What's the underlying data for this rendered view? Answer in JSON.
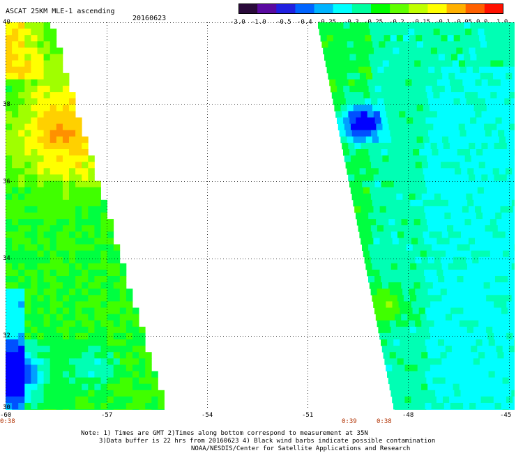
{
  "title": "ASCAT 25KM MLE-1 ascending",
  "date": "20160623",
  "colorbar": {
    "colors": [
      "#2a0a3a",
      "#5a0aa0",
      "#2020e0",
      "#0064ff",
      "#00b4ff",
      "#00ffff",
      "#00ffa0",
      "#00ff00",
      "#60ff00",
      "#c0ff00",
      "#ffff00",
      "#ffb000",
      "#ff6000",
      "#ff1000"
    ],
    "tick_labels": [
      "-3.0",
      "-1.0",
      "-0.5",
      "-0.4",
      "-0.35",
      "-0.3",
      "-0.25",
      "-0.2",
      "-0.15",
      "-0.1",
      "-0.05",
      "0.0",
      "1.0"
    ]
  },
  "map": {
    "lon_range": [
      -60,
      -45
    ],
    "lat_range": [
      30,
      40
    ],
    "lat_labels": [
      "40",
      "38",
      "36",
      "34",
      "32",
      "30"
    ],
    "lon_labels": [
      "-60",
      "-57",
      "-54",
      "-51",
      "-48",
      "-45"
    ],
    "time_labels": [
      "0:38",
      "0:39",
      "0:38"
    ]
  },
  "notes": [
    "Note: 1) Times are GMT 2)Times along bottom correspond to measurement at 35N",
    "3)Data buffer is 22 hrs from 20160623 4) Black wind barbs indicate possible contamination",
    "NOAA/NESDIS/Center for Satellite Applications and Research"
  ]
}
